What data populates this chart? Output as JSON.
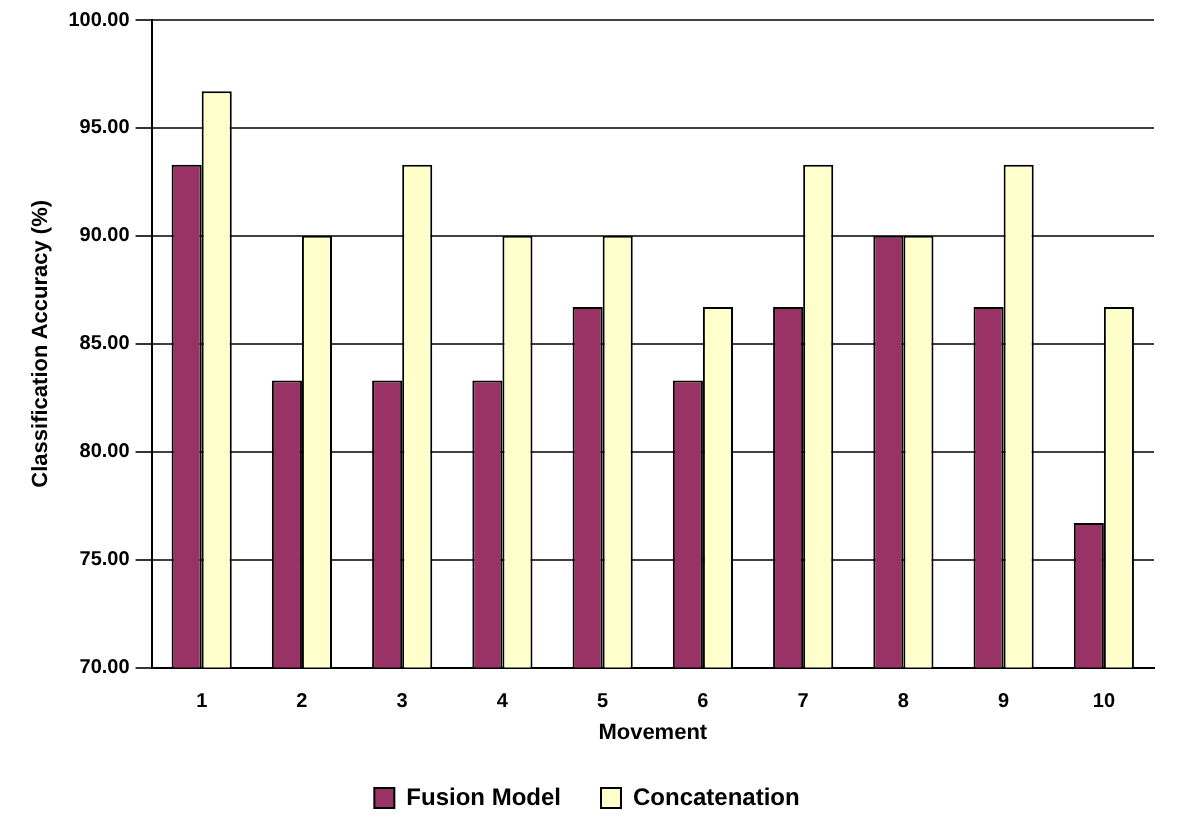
{
  "chart_data": {
    "type": "bar",
    "xlabel": "Movement",
    "ylabel": "Classification Accuracy (%)",
    "categories": [
      "1",
      "2",
      "3",
      "4",
      "5",
      "6",
      "7",
      "8",
      "9",
      "10"
    ],
    "series": [
      {
        "name": "Fusion Model",
        "color": "#993366",
        "values": [
          93.3,
          83.3,
          83.3,
          83.3,
          86.7,
          83.3,
          86.7,
          90,
          86.7,
          76.7
        ]
      },
      {
        "name": "Concatenation",
        "color": "#ffffcc",
        "values": [
          96.7,
          90,
          93.3,
          90,
          90,
          86.7,
          93.3,
          90,
          93.3,
          86.7
        ]
      }
    ],
    "ylim": [
      70,
      100
    ],
    "yticks": [
      {
        "value": 70,
        "label": "70.00"
      },
      {
        "value": 75,
        "label": "75.00"
      },
      {
        "value": 80,
        "label": "80.00"
      },
      {
        "value": 85,
        "label": "85.00"
      },
      {
        "value": 90,
        "label": "90.00"
      },
      {
        "value": 95,
        "label": "95.00"
      },
      {
        "value": 100,
        "label": "100.00"
      }
    ],
    "grid": "y",
    "legend": "bottom"
  }
}
